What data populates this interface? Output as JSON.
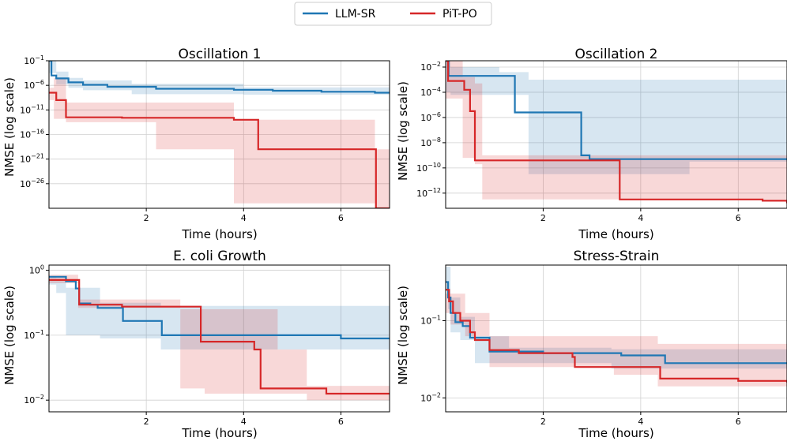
{
  "legend": {
    "entries": [
      {
        "name": "LLM-SR",
        "color": "#1f77b4"
      },
      {
        "name": "PiT-PO",
        "color": "#d62728"
      }
    ]
  },
  "chart_data": [
    {
      "type": "line",
      "title": "Oscillation 1",
      "xlabel": "Time (hours)",
      "ylabel": "NMSE (log scale)",
      "yscale": "log",
      "xlim": [
        0,
        7
      ],
      "ylim_log10": [
        -31,
        -1
      ],
      "xticks": [
        {
          "v": 2,
          "label": "2"
        },
        {
          "v": 4,
          "label": "4"
        },
        {
          "v": 6,
          "label": "6"
        }
      ],
      "yticks": [
        {
          "v": -1,
          "base": "10",
          "exp": "−1"
        },
        {
          "v": -6,
          "base": "10",
          "exp": "−6"
        },
        {
          "v": -11,
          "base": "10",
          "exp": "−11"
        },
        {
          "v": -16,
          "base": "10",
          "exp": "−16"
        },
        {
          "v": -21,
          "base": "10",
          "exp": "−21"
        },
        {
          "v": -26,
          "base": "10",
          "exp": "−26"
        }
      ],
      "series": [
        {
          "name": "LLM-SR",
          "color": "#1f77b4",
          "line": [
            [
              0,
              -1
            ],
            [
              0.05,
              -4
            ],
            [
              0.15,
              -4.6
            ],
            [
              0.4,
              -5.4
            ],
            [
              0.7,
              -5.9
            ],
            [
              1.2,
              -6.3
            ],
            [
              2.2,
              -6.7
            ],
            [
              3.8,
              -6.9
            ],
            [
              4.6,
              -7.1
            ],
            [
              5.6,
              -7.3
            ],
            [
              6.7,
              -7.5
            ],
            [
              7,
              -7.5
            ]
          ],
          "band": [
            [
              0,
              -1,
              -3.5
            ],
            [
              0.15,
              -3.2,
              -5.8
            ],
            [
              0.4,
              -4.5,
              -6.5
            ],
            [
              0.7,
              -5.0,
              -7.0
            ],
            [
              1.7,
              -5.7,
              -7.8
            ],
            [
              4.0,
              -6.4,
              -7.9
            ],
            [
              7,
              -6.4,
              -7.9
            ]
          ]
        },
        {
          "name": "PiT-PO",
          "color": "#d62728",
          "line": [
            [
              0,
              -7.5
            ],
            [
              0.1,
              -7.5
            ],
            [
              0.15,
              -9.0
            ],
            [
              0.35,
              -12.5
            ],
            [
              1.5,
              -12.6
            ],
            [
              3.8,
              -13.0
            ],
            [
              4.3,
              -19.0
            ],
            [
              6.7,
              -19.0
            ],
            [
              6.72,
              -31.0
            ],
            [
              7,
              -31.0
            ]
          ],
          "band": [
            [
              0,
              -6.5,
              -9.0
            ],
            [
              0.1,
              -4.5,
              -12.8
            ],
            [
              0.35,
              -9.5,
              -13.5
            ],
            [
              2.2,
              -9.5,
              -19.0
            ],
            [
              3.8,
              -13.0,
              -30.0
            ],
            [
              6.7,
              -19.0,
              -31.0
            ],
            [
              7,
              -19.0,
              -31.0
            ]
          ]
        }
      ]
    },
    {
      "type": "line",
      "title": "Oscillation 2",
      "xlabel": "Time (hours)",
      "ylabel": "NMSE (log scale)",
      "yscale": "log",
      "xlim": [
        0,
        7
      ],
      "ylim_log10": [
        -13.2,
        -1.5
      ],
      "xticks": [
        {
          "v": 2,
          "label": "2"
        },
        {
          "v": 4,
          "label": "4"
        },
        {
          "v": 6,
          "label": "6"
        }
      ],
      "yticks": [
        {
          "v": -2,
          "base": "10",
          "exp": "−2"
        },
        {
          "v": -4,
          "base": "10",
          "exp": "−4"
        },
        {
          "v": -6,
          "base": "10",
          "exp": "−6"
        },
        {
          "v": -8,
          "base": "10",
          "exp": "−8"
        },
        {
          "v": -10,
          "base": "10",
          "exp": "−10"
        },
        {
          "v": -12,
          "base": "10",
          "exp": "−12"
        }
      ],
      "series": [
        {
          "name": "LLM-SR",
          "color": "#1f77b4",
          "line": [
            [
              0,
              -1.5
            ],
            [
              0.06,
              -2.7
            ],
            [
              1.4,
              -2.7
            ],
            [
              1.42,
              -5.6
            ],
            [
              2.75,
              -5.6
            ],
            [
              2.78,
              -9.0
            ],
            [
              2.95,
              -9.3
            ],
            [
              7,
              -9.3
            ]
          ],
          "band": [
            [
              0,
              -1.5,
              -4.0
            ],
            [
              0.1,
              -2.0,
              -4.2
            ],
            [
              1.1,
              -2.4,
              -4.2
            ],
            [
              1.7,
              -3.0,
              -10.5
            ],
            [
              5.0,
              -3.0,
              -9.5
            ],
            [
              7,
              -3.0,
              -9.5
            ]
          ]
        },
        {
          "name": "PiT-PO",
          "color": "#d62728",
          "line": [
            [
              0,
              -1.5
            ],
            [
              0.05,
              -3.1
            ],
            [
              0.35,
              -3.1
            ],
            [
              0.38,
              -3.8
            ],
            [
              0.45,
              -3.8
            ],
            [
              0.5,
              -5.5
            ],
            [
              0.55,
              -5.5
            ],
            [
              0.6,
              -9.4
            ],
            [
              3.55,
              -9.4
            ],
            [
              3.57,
              -12.5
            ],
            [
              6.5,
              -12.6
            ],
            [
              7,
              -12.8
            ]
          ],
          "band": [
            [
              0,
              -1.5,
              -4.5
            ],
            [
              0.35,
              -2.8,
              -9.2
            ],
            [
              0.6,
              -3.3,
              -9.7
            ],
            [
              0.75,
              -9.0,
              -12.5
            ],
            [
              6.7,
              -9.0,
              -12.5
            ],
            [
              7,
              -9.0,
              -12.5
            ]
          ]
        }
      ]
    },
    {
      "type": "line",
      "title": "E. coli Growth",
      "xlabel": "Time (hours)",
      "ylabel": "NMSE (log scale)",
      "yscale": "log",
      "xlim": [
        0,
        7
      ],
      "ylim_log10": [
        -2.18,
        0.08
      ],
      "xticks": [
        {
          "v": 2,
          "label": "2"
        },
        {
          "v": 4,
          "label": "4"
        },
        {
          "v": 6,
          "label": "6"
        }
      ],
      "yticks": [
        {
          "v": 0,
          "base": "10",
          "exp": "0"
        },
        {
          "v": -1,
          "base": "10",
          "exp": "−1"
        },
        {
          "v": -2,
          "base": "10",
          "exp": "−2"
        }
      ],
      "series": [
        {
          "name": "LLM-SR",
          "color": "#1f77b4",
          "line": [
            [
              0,
              -0.1
            ],
            [
              0.35,
              -0.17
            ],
            [
              0.55,
              -0.28
            ],
            [
              0.62,
              -0.51
            ],
            [
              0.85,
              -0.53
            ],
            [
              1.0,
              -0.58
            ],
            [
              1.5,
              -0.58
            ],
            [
              1.52,
              -0.78
            ],
            [
              2.3,
              -0.78
            ],
            [
              2.32,
              -1.0
            ],
            [
              4.0,
              -1.0
            ],
            [
              6.0,
              -1.05
            ],
            [
              7,
              -1.05
            ]
          ],
          "band": [
            [
              0,
              -0.1,
              -0.22
            ],
            [
              0.15,
              -0.12,
              -0.35
            ],
            [
              0.35,
              -0.27,
              -1.0
            ],
            [
              1.05,
              -0.5,
              -1.05
            ],
            [
              2.3,
              -0.55,
              -1.22
            ],
            [
              7,
              -0.55,
              -1.22
            ]
          ]
        },
        {
          "name": "PiT-PO",
          "color": "#d62728",
          "line": [
            [
              0,
              -0.15
            ],
            [
              0.6,
              -0.15
            ],
            [
              0.62,
              -0.53
            ],
            [
              1.5,
              -0.56
            ],
            [
              3.1,
              -0.56
            ],
            [
              3.12,
              -1.1
            ],
            [
              4.2,
              -1.1
            ],
            [
              4.22,
              -1.22
            ],
            [
              4.33,
              -1.22
            ],
            [
              4.35,
              -1.82
            ],
            [
              5.4,
              -1.82
            ],
            [
              5.7,
              -1.9
            ],
            [
              7,
              -1.9
            ]
          ],
          "band": [
            [
              0,
              -0.07,
              -0.2
            ],
            [
              0.6,
              -0.45,
              -0.58
            ],
            [
              2.7,
              -0.6,
              -1.82
            ],
            [
              3.2,
              -0.6,
              -1.9
            ],
            [
              3.6,
              -0.6,
              -1.9
            ],
            [
              4.7,
              -1.22,
              -1.9
            ],
            [
              5.3,
              -1.78,
              -2.0
            ],
            [
              7,
              -1.78,
              -2.0
            ]
          ]
        }
      ]
    },
    {
      "type": "line",
      "title": "Stress-Strain",
      "xlabel": "Time (hours)",
      "ylabel": "NMSE (log scale)",
      "yscale": "log",
      "xlim": [
        0,
        7
      ],
      "ylim_log10": [
        -2.18,
        -0.28
      ],
      "xticks": [
        {
          "v": 2,
          "label": "2"
        },
        {
          "v": 4,
          "label": "4"
        },
        {
          "v": 6,
          "label": "6"
        }
      ],
      "yticks": [
        {
          "v": -1,
          "base": "10",
          "exp": "−1"
        },
        {
          "v": -2,
          "base": "10",
          "exp": "−2"
        }
      ],
      "series": [
        {
          "name": "LLM-SR",
          "color": "#1f77b4",
          "line": [
            [
              0,
              -0.5
            ],
            [
              0.05,
              -0.7
            ],
            [
              0.1,
              -0.9
            ],
            [
              0.2,
              -1.02
            ],
            [
              0.35,
              -1.07
            ],
            [
              0.5,
              -1.22
            ],
            [
              0.9,
              -1.4
            ],
            [
              2.0,
              -1.42
            ],
            [
              3.6,
              -1.45
            ],
            [
              4.5,
              -1.55
            ],
            [
              7,
              -1.56
            ]
          ],
          "band": [
            [
              0,
              -0.3,
              -0.6
            ],
            [
              0.05,
              -0.3,
              -0.85
            ],
            [
              0.1,
              -0.7,
              -1.15
            ],
            [
              0.3,
              -0.95,
              -1.25
            ],
            [
              0.6,
              -1.2,
              -1.55
            ],
            [
              1.3,
              -1.35,
              -1.55
            ],
            [
              3.4,
              -1.37,
              -1.62
            ],
            [
              4.3,
              -1.37,
              -1.62
            ],
            [
              7,
              -1.37,
              -1.62
            ]
          ]
        },
        {
          "name": "PiT-PO",
          "color": "#d62728",
          "line": [
            [
              0,
              -0.6
            ],
            [
              0.07,
              -0.75
            ],
            [
              0.15,
              -0.9
            ],
            [
              0.3,
              -1.0
            ],
            [
              0.5,
              -1.15
            ],
            [
              0.6,
              -1.25
            ],
            [
              0.9,
              -1.38
            ],
            [
              1.5,
              -1.42
            ],
            [
              2.6,
              -1.47
            ],
            [
              2.65,
              -1.6
            ],
            [
              4.35,
              -1.6
            ],
            [
              4.4,
              -1.75
            ],
            [
              6.0,
              -1.78
            ],
            [
              7,
              -1.8
            ]
          ],
          "band": [
            [
              0,
              -0.65,
              -0.9
            ],
            [
              0.1,
              -0.65,
              -1.05
            ],
            [
              0.4,
              -0.9,
              -1.2
            ],
            [
              0.9,
              -1.2,
              -1.6
            ],
            [
              3.45,
              -1.2,
              -1.7
            ],
            [
              4.35,
              -1.3,
              -1.85
            ],
            [
              7,
              -1.7,
              -1.85
            ]
          ]
        }
      ]
    }
  ]
}
